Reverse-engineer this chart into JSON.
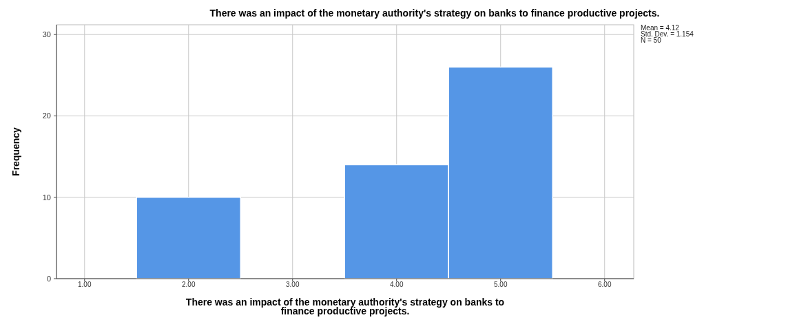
{
  "chart_data": {
    "type": "histogram",
    "title": "There was an impact of the monetary authority's strategy on banks to finance productive projects.",
    "xlabel": "There was an impact of the monetary authority's strategy on banks to finance productive projects.",
    "ylabel": "Frequency",
    "bins": [
      1.5,
      2.5,
      3.5,
      4.5,
      5.5
    ],
    "values": [
      10,
      0,
      14,
      26
    ],
    "color": "#5596e6",
    "xlim": [
      0.73,
      6.28
    ],
    "xticks": [
      {
        "value": 1,
        "label": "1.00"
      },
      {
        "value": 2,
        "label": "2.00"
      },
      {
        "value": 3,
        "label": "3.00"
      },
      {
        "value": 4,
        "label": "4.00"
      },
      {
        "value": 5,
        "label": "5.00"
      },
      {
        "value": 6,
        "label": "6.00"
      }
    ],
    "ylim": [
      0,
      31.2
    ],
    "yticks": [
      0,
      10,
      20,
      30
    ],
    "grid": true,
    "annotations": [
      "Mean = 4.12",
      "Std. Dev. = 1.154",
      "N = 50"
    ]
  }
}
